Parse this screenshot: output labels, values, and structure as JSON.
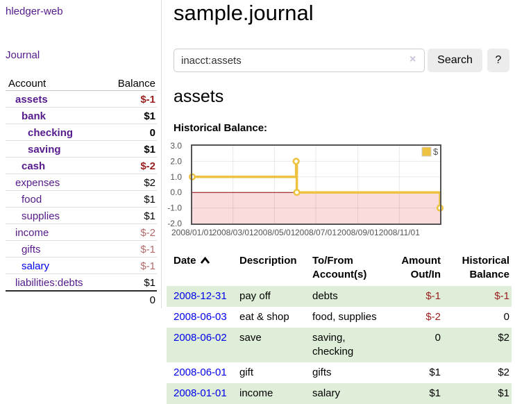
{
  "colors": {
    "link_visited": "#551a8b",
    "link_unvisited": "#0000ee",
    "negative_strong": "#991f1f",
    "negative_muted": "#b36b6b",
    "row_stripe_green": "#dfeed8",
    "button_gray": "#ececec"
  },
  "sidebar": {
    "brand": "hledger-web",
    "journal_link": "Journal",
    "accounts": {
      "header_account": "Account",
      "header_balance": "Balance",
      "rows": [
        {
          "name": "assets",
          "indent": 1,
          "bold": true,
          "balance": "$-1",
          "balance_tone": "neg-strong",
          "link_tone": "visited"
        },
        {
          "name": "bank",
          "indent": 2,
          "bold": true,
          "balance": "$1",
          "balance_tone": "normal",
          "link_tone": "visited"
        },
        {
          "name": "checking",
          "indent": 3,
          "bold": true,
          "balance": "0",
          "balance_tone": "normal",
          "link_tone": "visited"
        },
        {
          "name": "saving",
          "indent": 3,
          "bold": true,
          "balance": "$1",
          "balance_tone": "normal",
          "link_tone": "visited"
        },
        {
          "name": "cash",
          "indent": 2,
          "bold": true,
          "balance": "$-2",
          "balance_tone": "neg-strong",
          "link_tone": "visited"
        },
        {
          "name": "expenses",
          "indent": 1,
          "bold": false,
          "balance": "$2",
          "balance_tone": "normal",
          "link_tone": "visited"
        },
        {
          "name": "food",
          "indent": 2,
          "bold": false,
          "balance": "$1",
          "balance_tone": "normal",
          "link_tone": "visited"
        },
        {
          "name": "supplies",
          "indent": 2,
          "bold": false,
          "balance": "$1",
          "balance_tone": "normal",
          "link_tone": "visited"
        },
        {
          "name": "income",
          "indent": 1,
          "bold": false,
          "balance": "$-2",
          "balance_tone": "neg-muted",
          "link_tone": "visited"
        },
        {
          "name": "gifts",
          "indent": 2,
          "bold": false,
          "balance": "$-1",
          "balance_tone": "neg-muted",
          "link_tone": "visited"
        },
        {
          "name": "salary",
          "indent": 2,
          "bold": false,
          "balance": "$-1",
          "balance_tone": "neg-muted",
          "link_tone": "unvisited"
        },
        {
          "name": "liabilities:debts",
          "indent": 1,
          "bold": false,
          "balance": "$1",
          "balance_tone": "normal",
          "link_tone": "visited"
        }
      ],
      "total": "0"
    }
  },
  "main": {
    "title": "sample.journal",
    "search": {
      "value": "inacct:assets",
      "clear_glyph": "×",
      "search_button": "Search",
      "help_button": "?"
    },
    "account_heading": "assets",
    "chart_heading": "Historical Balance:"
  },
  "chart_data": {
    "type": "line",
    "steps": true,
    "title": "Historical Balance:",
    "xlabel": "",
    "ylabel": "",
    "xlim": [
      0,
      365
    ],
    "ylim": [
      -2,
      3
    ],
    "grid": true,
    "negative_region": true,
    "negative_fill": "#fbdcdc",
    "zero_line_color": "#8b0000",
    "grid_color": "rgba(0,0,0,0.09)",
    "border_color": "#545454",
    "tick_color": "#545454",
    "legend": {
      "label": "$",
      "position": "top-right"
    },
    "series": [
      {
        "name": "$",
        "color": "#edc240",
        "points": [
          {
            "date": "2008-01-01",
            "x": 0,
            "y": 1
          },
          {
            "date": "2008-06-02",
            "x": 153,
            "y": 2
          },
          {
            "date": "2008-06-03",
            "x": 154,
            "y": 0
          },
          {
            "date": "2008-12-31",
            "x": 365,
            "y": -1
          }
        ]
      }
    ],
    "yticks": [
      {
        "v": 3,
        "label": "3.0"
      },
      {
        "v": 2,
        "label": "2.0"
      },
      {
        "v": 1,
        "label": "1.0"
      },
      {
        "v": 0,
        "label": "0.0"
      },
      {
        "v": -1,
        "label": "-1.0"
      },
      {
        "v": -2,
        "label": "-2.0"
      }
    ],
    "xticks": [
      {
        "v": 0,
        "label": "2008/01/01"
      },
      {
        "v": 60,
        "label": "2008/03/01"
      },
      {
        "v": 121,
        "label": "2008/05/01"
      },
      {
        "v": 182,
        "label": "2008/07/01"
      },
      {
        "v": 244,
        "label": "2008/09/01"
      },
      {
        "v": 305,
        "label": "2008/11/01"
      }
    ]
  },
  "register": {
    "headers": {
      "date": "Date",
      "description": "Description",
      "accounts": "To/From Account(s)",
      "amount": "Amount Out/In",
      "balance": "Historical Balance"
    },
    "sort": {
      "column": "date",
      "direction": "ascending",
      "icon": "chevron-up-icon"
    },
    "rows": [
      {
        "date": "2008-12-31",
        "description": "pay off",
        "accounts": "debts",
        "amount": "$-1",
        "amount_tone": "neg",
        "balance": "$-1",
        "balance_tone": "neg",
        "stripe": true
      },
      {
        "date": "2008-06-03",
        "description": "eat & shop",
        "accounts": "food, supplies",
        "amount": "$-2",
        "amount_tone": "neg",
        "balance": "0",
        "balance_tone": "normal",
        "stripe": false
      },
      {
        "date": "2008-06-02",
        "description": "save",
        "accounts": "saving, checking",
        "amount": "0",
        "amount_tone": "normal",
        "balance": "$2",
        "balance_tone": "normal",
        "stripe": true
      },
      {
        "date": "2008-06-01",
        "description": "gift",
        "accounts": "gifts",
        "amount": "$1",
        "amount_tone": "normal",
        "balance": "$2",
        "balance_tone": "normal",
        "stripe": false
      },
      {
        "date": "2008-01-01",
        "description": "income",
        "accounts": "salary",
        "amount": "$1",
        "amount_tone": "normal",
        "balance": "$1",
        "balance_tone": "normal",
        "stripe": true
      }
    ]
  }
}
